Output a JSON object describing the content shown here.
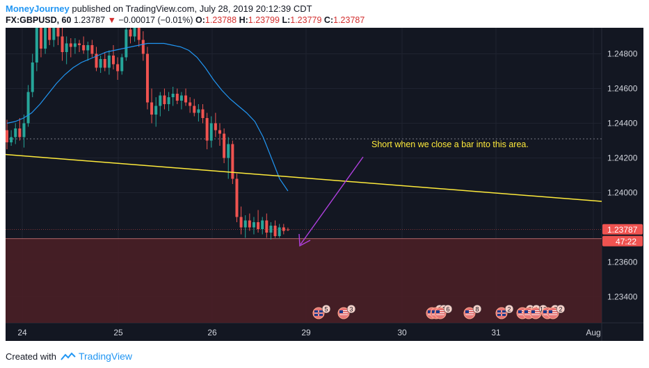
{
  "header": {
    "author": "MoneyJourney",
    "published_text": "published on TradingView.com, July 28, 2019 20:12:39 CDT"
  },
  "ohlc": {
    "symbol": "FX:GBPUSD, 60",
    "last": "1.23787",
    "change": "−0.00017 (−0.01%)",
    "o_label": "O:",
    "o_value": "1.23788",
    "h_label": "H:",
    "h_value": "1.23799",
    "l_label": "L:",
    "l_value": "1.23779",
    "c_label": "C:",
    "c_value": "1.23787"
  },
  "footer": {
    "created_with": "Created with",
    "brand": "TradingView"
  },
  "colors": {
    "background": "#131722",
    "up": "#26a69a",
    "down": "#ef5350",
    "ma": "#2196f3",
    "trendline": "#ffeb3b",
    "zone": "#4a1f26",
    "arrow": "#b040e0",
    "annotation": "#ffeb3b"
  },
  "chart_data": {
    "type": "candlestick",
    "ylim": [
      1.2325,
      1.2495
    ],
    "yticks": [
      "1.24800",
      "1.24600",
      "1.24400",
      "1.24200",
      "1.24000",
      "1.23600",
      "1.23400"
    ],
    "xticks": [
      "24",
      "25",
      "26",
      "29",
      "30",
      "31",
      "Aug"
    ],
    "last_price_label": "1.23787",
    "countdown_label": "47:22",
    "annotation": "Short when we close a bar into this area.",
    "resistance_level": 1.2431,
    "zone": {
      "top": 1.23735,
      "bottom": 1.2325
    },
    "trendline": {
      "from": 1.2422,
      "to": 1.2395
    },
    "candles": [
      [
        1.2436,
        1.2442,
        1.2425,
        1.2429
      ],
      [
        1.2429,
        1.2436,
        1.2427,
        1.2432
      ],
      [
        1.2432,
        1.244,
        1.2428,
        1.2437
      ],
      [
        1.2437,
        1.2443,
        1.243,
        1.2432
      ],
      [
        1.2432,
        1.2445,
        1.2426,
        1.244
      ],
      [
        1.244,
        1.2462,
        1.2438,
        1.2458
      ],
      [
        1.2458,
        1.248,
        1.2455,
        1.2475
      ],
      [
        1.2475,
        1.25,
        1.247,
        1.2495
      ],
      [
        1.2495,
        1.25,
        1.2478,
        1.2483
      ],
      [
        1.2483,
        1.25,
        1.248,
        1.2497
      ],
      [
        1.2497,
        1.25,
        1.2485,
        1.2488
      ],
      [
        1.2488,
        1.2499,
        1.2484,
        1.2495
      ],
      [
        1.2495,
        1.25,
        1.2485,
        1.249
      ],
      [
        1.249,
        1.2498,
        1.2476,
        1.2481
      ],
      [
        1.2481,
        1.249,
        1.2474,
        1.2486
      ],
      [
        1.2486,
        1.2489,
        1.2478,
        1.2484
      ],
      [
        1.2484,
        1.2489,
        1.248,
        1.2486
      ],
      [
        1.2486,
        1.2488,
        1.2481,
        1.2485
      ],
      [
        1.2485,
        1.249,
        1.248,
        1.2482
      ],
      [
        1.2482,
        1.2487,
        1.2476,
        1.2485
      ],
      [
        1.2485,
        1.2488,
        1.2478,
        1.248
      ],
      [
        1.248,
        1.2484,
        1.247,
        1.2472
      ],
      [
        1.2472,
        1.2479,
        1.2469,
        1.2477
      ],
      [
        1.2477,
        1.2481,
        1.247,
        1.2472
      ],
      [
        1.2472,
        1.2482,
        1.2468,
        1.2479
      ],
      [
        1.2479,
        1.2485,
        1.2471,
        1.2474
      ],
      [
        1.2474,
        1.2478,
        1.2465,
        1.247
      ],
      [
        1.247,
        1.248,
        1.2468,
        1.2478
      ],
      [
        1.2478,
        1.25,
        1.2476,
        1.2494
      ],
      [
        1.2494,
        1.25,
        1.2486,
        1.249
      ],
      [
        1.249,
        1.25,
        1.2487,
        1.2497
      ],
      [
        1.2497,
        1.25,
        1.2484,
        1.2488
      ],
      [
        1.2488,
        1.2493,
        1.2476,
        1.248
      ],
      [
        1.248,
        1.2484,
        1.2448,
        1.2452
      ],
      [
        1.2452,
        1.246,
        1.244,
        1.2445
      ],
      [
        1.2445,
        1.2455,
        1.2438,
        1.245
      ],
      [
        1.245,
        1.2458,
        1.2444,
        1.2456
      ],
      [
        1.2456,
        1.246,
        1.2448,
        1.2451
      ],
      [
        1.2451,
        1.2458,
        1.2447,
        1.2455
      ],
      [
        1.2455,
        1.2461,
        1.245,
        1.2457
      ],
      [
        1.2457,
        1.246,
        1.2451,
        1.2453
      ],
      [
        1.2453,
        1.2458,
        1.2448,
        1.2456
      ],
      [
        1.2456,
        1.246,
        1.245,
        1.2452
      ],
      [
        1.2452,
        1.2455,
        1.2446,
        1.245
      ],
      [
        1.245,
        1.2454,
        1.2444,
        1.2446
      ],
      [
        1.2446,
        1.2451,
        1.2441,
        1.2448
      ],
      [
        1.2448,
        1.2451,
        1.244,
        1.2443
      ],
      [
        1.2443,
        1.2446,
        1.2425,
        1.243
      ],
      [
        1.243,
        1.2444,
        1.2426,
        1.244
      ],
      [
        1.244,
        1.2446,
        1.2432,
        1.2436
      ],
      [
        1.2436,
        1.244,
        1.2427,
        1.2434
      ],
      [
        1.2434,
        1.2437,
        1.2417,
        1.242
      ],
      [
        1.242,
        1.2432,
        1.2408,
        1.2428
      ],
      [
        1.2428,
        1.243,
        1.2405,
        1.2408
      ],
      [
        1.2408,
        1.2411,
        1.2383,
        1.2386
      ],
      [
        1.2386,
        1.2392,
        1.2376,
        1.238
      ],
      [
        1.238,
        1.2387,
        1.2374,
        1.2384
      ],
      [
        1.2384,
        1.2388,
        1.2378,
        1.238
      ],
      [
        1.238,
        1.2386,
        1.2376,
        1.2383
      ],
      [
        1.2383,
        1.239,
        1.2377,
        1.2379
      ],
      [
        1.2379,
        1.2386,
        1.2376,
        1.2384
      ],
      [
        1.2384,
        1.2388,
        1.2374,
        1.2377
      ],
      [
        1.2377,
        1.2383,
        1.2373,
        1.2381
      ],
      [
        1.2381,
        1.2384,
        1.2374,
        1.2375
      ],
      [
        1.2375,
        1.2382,
        1.2374,
        1.238
      ],
      [
        1.238,
        1.2382,
        1.2376,
        1.2378
      ],
      [
        1.23788,
        1.23799,
        1.23779,
        1.23787
      ]
    ],
    "ma": [
      1.244,
      1.2441,
      1.2443,
      1.2446,
      1.2451,
      1.2457,
      1.2463,
      1.2468,
      1.2472,
      1.2475,
      1.2477,
      1.2479,
      1.2481,
      1.2482,
      1.2483,
      1.2484,
      1.2485,
      1.2486,
      1.2486,
      1.2486,
      1.2485,
      1.2484,
      1.2482,
      1.2478,
      1.2472,
      1.2465,
      1.2459,
      1.2454,
      1.245,
      1.2446,
      1.2441,
      1.2432,
      1.242,
      1.2408,
      1.2401
    ],
    "events": [
      {
        "flag": "uk",
        "count": "5"
      },
      {
        "flag": "us",
        "count": "3"
      },
      {
        "flag": "us",
        "count": "9"
      },
      {
        "flag": "us",
        "count": "1"
      },
      {
        "flag": "us",
        "count": "6"
      },
      {
        "flag": "us",
        "count": "8"
      },
      {
        "flag": "uk",
        "count": "2"
      },
      {
        "flag": "us",
        "count": "5"
      },
      {
        "flag": "us",
        "count": "1"
      },
      {
        "flag": "us",
        "count": "12"
      },
      {
        "flag": "us",
        "count": "2"
      },
      {
        "flag": "us",
        "count": "2"
      }
    ]
  }
}
